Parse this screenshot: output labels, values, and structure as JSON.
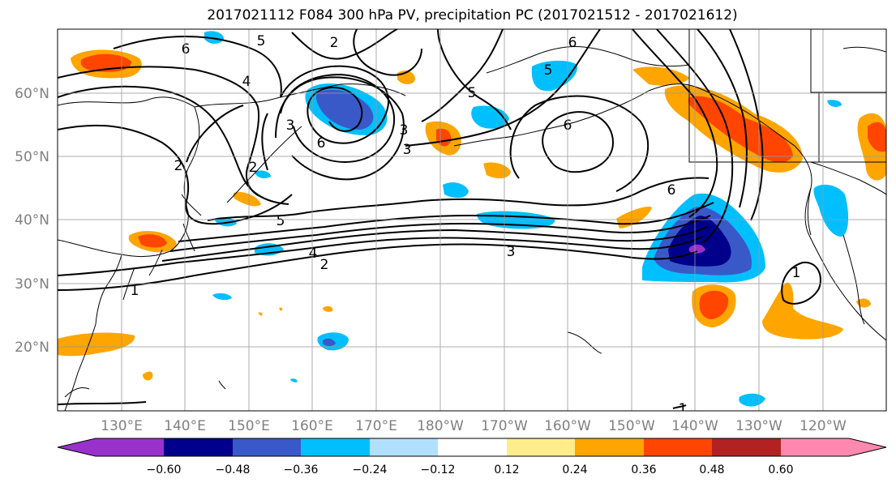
{
  "title": "2017021112 F084 300 hPa PV, precipitation PC (2017021512 - 2017021612)",
  "lat_labels": [
    "60°N",
    "50°N",
    "40°N",
    "30°N",
    "20°N"
  ],
  "lon_labels": [
    "130°E",
    "140°E",
    "150°E",
    "160°E",
    "170°E",
    "180°W",
    "170°W",
    "160°W",
    "150°W",
    "140°W",
    "130°W",
    "120°W"
  ],
  "colorbar": {
    "colors": [
      "#9932cc",
      "#00008b",
      "#3a59c8",
      "#00bfff",
      "#b0e0fe",
      "#ffffff",
      "#ffffff",
      "#ffec8b",
      "#ffa500",
      "#ff4500",
      "#b22222",
      "#ff88b0"
    ],
    "tick_labels": [
      "−0.60",
      "−0.48",
      "−0.36",
      "−0.24",
      "−0.12",
      "0.12",
      "0.24",
      "0.36",
      "0.48",
      "0.60"
    ]
  },
  "contour_labels": [
    "6",
    "5",
    "2",
    "3",
    "6",
    "5",
    "6",
    "2",
    "4",
    "3",
    "6",
    "2",
    "3",
    "6",
    "5",
    "4",
    "2",
    "3",
    "1",
    "1",
    "1",
    "5"
  ]
}
